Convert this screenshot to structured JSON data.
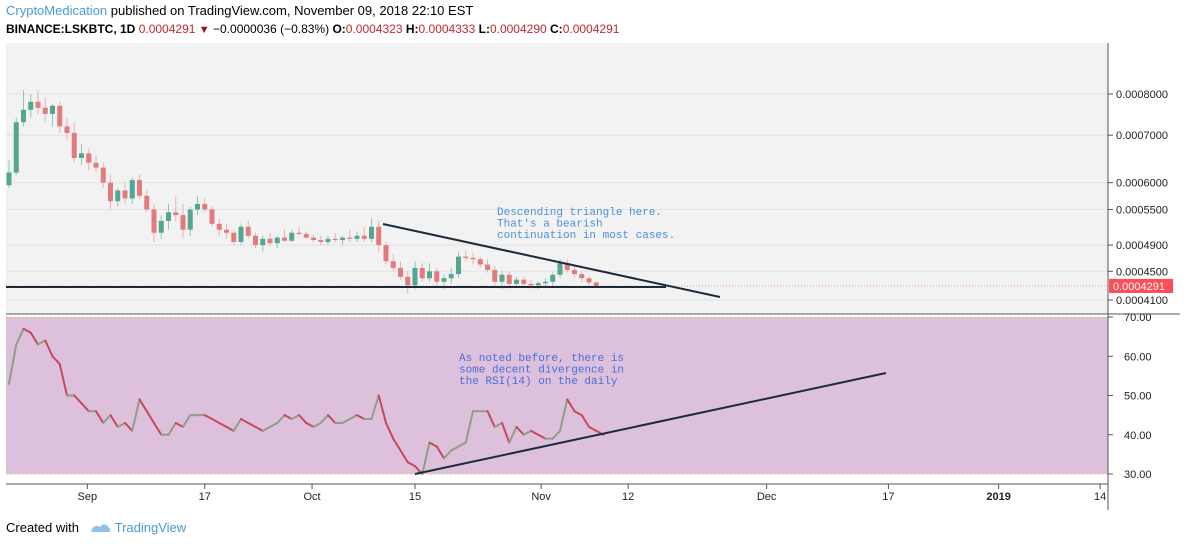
{
  "header": {
    "author": "CryptoMedication",
    "published": " published on TradingView.com, November 09, 2018 22:10 EST",
    "symbol": "BINANCE:LSKBTC, 1D",
    "last": "0.0004291",
    "change": "−0.0000036 (−0.83%)",
    "open_label": "O:",
    "open": "0.0004323",
    "high_label": "H:",
    "high": "0.0004333",
    "low_label": "L:",
    "low": "0.0004290",
    "close_label": "C:",
    "close": "0.0004291"
  },
  "footer": {
    "created_with": "Created with",
    "brand": "TradingView"
  },
  "colors": {
    "up": "#53a68f",
    "down": "#e37b7e",
    "rsi_band": "#dcc0dc",
    "trendline": "#1c2b3a",
    "annotation": "#4a90d9",
    "label_box": "#ff4d55"
  },
  "chart_data": [
    {
      "type": "candlestick",
      "title": "BINANCE:LSKBTC, 1D",
      "y_tick_labels": [
        "0.0008000",
        "0.0007000",
        "0.0006000",
        "0.0005500",
        "0.0004900",
        "0.0004500",
        "0.0004100"
      ],
      "y_ticks": [
        0.0008,
        0.0007,
        0.0006,
        0.00055,
        0.00049,
        0.00045,
        0.00041
      ],
      "last_price_label": "0.0004291",
      "x_tick_labels": [
        "Sep",
        "17",
        "Oct",
        "15",
        "Nov",
        "12",
        "Dec",
        "17",
        "2019",
        "14"
      ],
      "candles_ohlc": [
        [
          0.000595,
          0.000645,
          0.00059,
          0.00062
        ],
        [
          0.00062,
          0.00074,
          0.000615,
          0.00073
        ],
        [
          0.00073,
          0.00081,
          0.00072,
          0.00076
        ],
        [
          0.00076,
          0.0008,
          0.00074,
          0.00078
        ],
        [
          0.00078,
          0.00081,
          0.00075,
          0.000765
        ],
        [
          0.000765,
          0.00079,
          0.00073,
          0.00075
        ],
        [
          0.00075,
          0.000775,
          0.00072,
          0.00077
        ],
        [
          0.00077,
          0.00078,
          0.000705,
          0.00072
        ],
        [
          0.00072,
          0.00074,
          0.00069,
          0.000705
        ],
        [
          0.000705,
          0.00073,
          0.00064,
          0.00065
        ],
        [
          0.00065,
          0.00068,
          0.000635,
          0.00066
        ],
        [
          0.00066,
          0.00067,
          0.000625,
          0.00064
        ],
        [
          0.00064,
          0.000655,
          0.00062,
          0.00063
        ],
        [
          0.00063,
          0.00064,
          0.00059,
          0.0006
        ],
        [
          0.0006,
          0.000615,
          0.00055,
          0.000565
        ],
        [
          0.000565,
          0.00059,
          0.000555,
          0.000585
        ],
        [
          0.000585,
          0.0006,
          0.00056,
          0.00057
        ],
        [
          0.00057,
          0.00061,
          0.00056,
          0.000605
        ],
        [
          0.000605,
          0.000615,
          0.00057,
          0.000575
        ],
        [
          0.000575,
          0.000585,
          0.000545,
          0.00055
        ],
        [
          0.00055,
          0.00056,
          0.000495,
          0.00051
        ],
        [
          0.00051,
          0.00054,
          0.0005,
          0.00053
        ],
        [
          0.00053,
          0.00056,
          0.000515,
          0.000545
        ],
        [
          0.000545,
          0.000575,
          0.00053,
          0.00054
        ],
        [
          0.00054,
          0.00056,
          0.0005,
          0.000515
        ],
        [
          0.000515,
          0.000555,
          0.000505,
          0.00055
        ],
        [
          0.00055,
          0.000575,
          0.00054,
          0.00056
        ],
        [
          0.00056,
          0.00057,
          0.000545,
          0.00055
        ],
        [
          0.00055,
          0.000555,
          0.00052,
          0.000525
        ],
        [
          0.000525,
          0.000535,
          0.000505,
          0.000515
        ],
        [
          0.000515,
          0.000525,
          0.0005,
          0.00051
        ],
        [
          0.00051,
          0.000515,
          0.00049,
          0.000495
        ],
        [
          0.000495,
          0.000525,
          0.00049,
          0.00052
        ],
        [
          0.00052,
          0.00053,
          0.0005,
          0.000505
        ],
        [
          0.000505,
          0.00051,
          0.000485,
          0.00049
        ],
        [
          0.00049,
          0.000505,
          0.00048,
          0.0005
        ],
        [
          0.0005,
          0.00051,
          0.00049,
          0.000493
        ],
        [
          0.000493,
          0.000505,
          0.000485,
          0.000502
        ],
        [
          0.000502,
          0.000515,
          0.000495,
          0.000497
        ],
        [
          0.000497,
          0.000515,
          0.000495,
          0.00051
        ],
        [
          0.00051,
          0.00052,
          0.000505,
          0.000508
        ],
        [
          0.000508,
          0.000512,
          0.0005,
          0.000502
        ],
        [
          0.000502,
          0.000507,
          0.000495,
          0.000498
        ],
        [
          0.000498,
          0.000505,
          0.00049,
          0.000495
        ],
        [
          0.000495,
          0.000505,
          0.00049,
          0.0005
        ],
        [
          0.0005,
          0.00051,
          0.000495,
          0.000498
        ],
        [
          0.000498,
          0.000505,
          0.00049,
          0.000502
        ],
        [
          0.000502,
          0.000515,
          0.000495,
          0.0005
        ],
        [
          0.0005,
          0.000512,
          0.000495,
          0.000505
        ],
        [
          0.000505,
          0.00052,
          0.000495,
          0.0005
        ],
        [
          0.0005,
          0.000535,
          0.000495,
          0.00052
        ],
        [
          0.00052,
          0.00053,
          0.00048,
          0.00049
        ],
        [
          0.00049,
          0.000495,
          0.00046,
          0.000465
        ],
        [
          0.000465,
          0.000475,
          0.00045,
          0.000455
        ],
        [
          0.000455,
          0.000465,
          0.000438,
          0.000442
        ],
        [
          0.000442,
          0.00045,
          0.000418,
          0.00043
        ],
        [
          0.00043,
          0.000465,
          0.000425,
          0.000455
        ],
        [
          0.000455,
          0.000462,
          0.000435,
          0.00044
        ],
        [
          0.00044,
          0.000462,
          0.000435,
          0.00045
        ],
        [
          0.00045,
          0.000455,
          0.00043,
          0.000435
        ],
        [
          0.000435,
          0.000445,
          0.000425,
          0.00044
        ],
        [
          0.00044,
          0.000455,
          0.000432,
          0.000446
        ],
        [
          0.000446,
          0.00048,
          0.00044,
          0.000472
        ],
        [
          0.000472,
          0.000482,
          0.000465,
          0.00047
        ],
        [
          0.00047,
          0.000478,
          0.00046,
          0.000468
        ],
        [
          0.000468,
          0.000472,
          0.000455,
          0.00046
        ],
        [
          0.00046,
          0.000468,
          0.000448,
          0.000452
        ],
        [
          0.000452,
          0.000458,
          0.00043,
          0.000435
        ],
        [
          0.000435,
          0.00045,
          0.000425,
          0.000445
        ],
        [
          0.000445,
          0.00045,
          0.000425,
          0.000432
        ],
        [
          0.000432,
          0.000442,
          0.000426,
          0.000438
        ],
        [
          0.000438,
          0.000442,
          0.000428,
          0.000432
        ],
        [
          0.000432,
          0.000438,
          0.000425,
          0.00043
        ],
        [
          0.00043,
          0.000436,
          0.000425,
          0.000433
        ],
        [
          0.000433,
          0.00044,
          0.000428,
          0.000435
        ],
        [
          0.000435,
          0.000448,
          0.00043,
          0.000445
        ],
        [
          0.000445,
          0.000468,
          0.00044,
          0.000462
        ],
        [
          0.000462,
          0.000468,
          0.000448,
          0.000452
        ],
        [
          0.000452,
          0.000458,
          0.000442,
          0.000446
        ],
        [
          0.000446,
          0.00045,
          0.000435,
          0.00044
        ],
        [
          0.00044,
          0.000443,
          0.00043,
          0.000434
        ],
        [
          0.000434,
          0.000436,
          0.000428,
          0.000429
        ]
      ],
      "annotations": [
        {
          "lines": [
            "Descending triangle here.",
            "That's a bearish",
            "continuation in most cases."
          ]
        }
      ]
    },
    {
      "type": "line",
      "title": "RSI(14)",
      "y_tick_labels": [
        "70.00",
        "60.00",
        "50.00",
        "40.00",
        "30.00"
      ],
      "y_ticks": [
        70,
        60,
        50,
        40,
        30
      ],
      "band": [
        30,
        70
      ],
      "series": [
        {
          "values": [
            53,
            63,
            67,
            66,
            63,
            64,
            60,
            58,
            50,
            50,
            48,
            46,
            46,
            43,
            45,
            42,
            43,
            41,
            49,
            46,
            43,
            40,
            40,
            43,
            42,
            45,
            45,
            45,
            44,
            43,
            42,
            41,
            44,
            43,
            42,
            41,
            42,
            43,
            45,
            44,
            45,
            43,
            42,
            43,
            45,
            43,
            43,
            44,
            45,
            44,
            44,
            50,
            43,
            39,
            36,
            33,
            32,
            30,
            38,
            37,
            34,
            36,
            37,
            38,
            46,
            46,
            46,
            42,
            43,
            38,
            42,
            40,
            41,
            40,
            39,
            39,
            41,
            49,
            46,
            45,
            42,
            41,
            40
          ]
        }
      ],
      "annotations": [
        {
          "lines": [
            "As noted before, there is",
            "some decent divergence in",
            "the RSI(14) on the daily"
          ]
        }
      ]
    }
  ]
}
